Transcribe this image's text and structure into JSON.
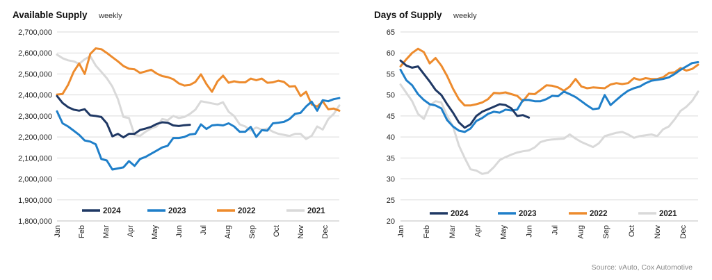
{
  "source": "Source: vAuto, Cox Automotive",
  "chart_data": [
    {
      "type": "line",
      "title": "Available Supply",
      "subtitle": "weekly",
      "xlabel": "",
      "ylabel": "",
      "ylim": [
        1800000,
        2700000
      ],
      "yticks": [
        1800000,
        1900000,
        2000000,
        2100000,
        2200000,
        2300000,
        2400000,
        2500000,
        2600000,
        2700000
      ],
      "ytick_labels": [
        "1,800,000",
        "1,900,000",
        "2,000,000",
        "2,100,000",
        "2,200,000",
        "2,300,000",
        "2,400,000",
        "2,500,000",
        "2,600,000",
        "2,700,000"
      ],
      "x_tick_labels": [
        "Jan",
        "Feb",
        "Mar",
        "Apr",
        "May",
        "Jun",
        "Jul",
        "Aug",
        "Sep",
        "Oct",
        "Nov",
        "Dec"
      ],
      "xlim": [
        1,
        52
      ],
      "grid": true,
      "legend": "bottom",
      "series": [
        {
          "name": "2024",
          "color": "#1f3864",
          "x": [
            1,
            2,
            3,
            4,
            5,
            6,
            7,
            8,
            9,
            10,
            11,
            12,
            13,
            14,
            15,
            16,
            17,
            18,
            19,
            20,
            21,
            22,
            23,
            24,
            25
          ],
          "values": [
            2395000,
            2362000,
            2342000,
            2330000,
            2325000,
            2332000,
            2303000,
            2300000,
            2295000,
            2265000,
            2203000,
            2215000,
            2198000,
            2215000,
            2215000,
            2233000,
            2240000,
            2248000,
            2262000,
            2270000,
            2268000,
            2255000,
            2252000,
            2256000,
            2258000
          ]
        },
        {
          "name": "2023",
          "color": "#1f7fc9",
          "x": [
            1,
            2,
            3,
            4,
            5,
            6,
            7,
            8,
            9,
            10,
            11,
            12,
            13,
            14,
            15,
            16,
            17,
            18,
            19,
            20,
            21,
            22,
            23,
            24,
            25,
            26,
            27,
            28,
            29,
            30,
            31,
            32,
            33,
            34,
            35,
            36,
            37,
            38,
            39,
            40,
            41,
            42,
            43,
            44,
            45,
            46,
            47,
            48,
            49,
            50,
            51,
            52
          ],
          "values": [
            2322000,
            2265000,
            2250000,
            2230000,
            2210000,
            2183000,
            2178000,
            2165000,
            2095000,
            2088000,
            2045000,
            2050000,
            2055000,
            2085000,
            2062000,
            2095000,
            2105000,
            2120000,
            2135000,
            2150000,
            2158000,
            2195000,
            2195000,
            2200000,
            2212000,
            2215000,
            2260000,
            2238000,
            2255000,
            2258000,
            2255000,
            2265000,
            2250000,
            2225000,
            2225000,
            2248000,
            2200000,
            2232000,
            2230000,
            2265000,
            2268000,
            2272000,
            2285000,
            2310000,
            2315000,
            2345000,
            2368000,
            2325000,
            2375000,
            2370000,
            2380000,
            2385000
          ]
        },
        {
          "name": "2022",
          "color": "#ed8b2d",
          "x": [
            1,
            2,
            3,
            4,
            5,
            6,
            7,
            8,
            9,
            10,
            11,
            12,
            13,
            14,
            15,
            16,
            17,
            18,
            19,
            20,
            21,
            22,
            23,
            24,
            25,
            26,
            27,
            28,
            29,
            30,
            31,
            32,
            33,
            34,
            35,
            36,
            37,
            38,
            39,
            40,
            41,
            42,
            43,
            44,
            45,
            46,
            47,
            48,
            49,
            50,
            51,
            52
          ],
          "values": [
            2402000,
            2405000,
            2448000,
            2510000,
            2550000,
            2500000,
            2595000,
            2622000,
            2618000,
            2600000,
            2580000,
            2560000,
            2538000,
            2525000,
            2522000,
            2505000,
            2512000,
            2520000,
            2502000,
            2490000,
            2485000,
            2475000,
            2455000,
            2445000,
            2448000,
            2462000,
            2498000,
            2452000,
            2415000,
            2465000,
            2492000,
            2458000,
            2465000,
            2460000,
            2460000,
            2478000,
            2470000,
            2478000,
            2458000,
            2460000,
            2468000,
            2462000,
            2440000,
            2442000,
            2395000,
            2415000,
            2355000,
            2345000,
            2370000,
            2332000,
            2335000,
            2325000
          ]
        },
        {
          "name": "2021",
          "color": "#d9d9d9",
          "x": [
            1,
            2,
            3,
            4,
            5,
            6,
            7,
            8,
            9,
            10,
            11,
            12,
            13,
            14,
            15,
            16,
            17,
            18,
            19,
            20,
            21,
            22,
            23,
            24,
            25,
            26,
            27,
            28,
            29,
            30,
            31,
            32,
            33,
            34,
            35,
            36,
            37,
            38,
            39,
            40,
            41,
            42,
            43,
            44,
            45,
            46,
            47,
            48,
            49,
            50,
            51,
            52
          ],
          "values": [
            2592000,
            2575000,
            2565000,
            2560000,
            2548000,
            2570000,
            2585000,
            2540000,
            2510000,
            2480000,
            2440000,
            2380000,
            2295000,
            2290000,
            2210000,
            2205000,
            2225000,
            2240000,
            2250000,
            2285000,
            2280000,
            2300000,
            2290000,
            2295000,
            2310000,
            2330000,
            2370000,
            2365000,
            2360000,
            2355000,
            2365000,
            2320000,
            2300000,
            2260000,
            2250000,
            2230000,
            2245000,
            2235000,
            2240000,
            2225000,
            2215000,
            2210000,
            2205000,
            2215000,
            2215000,
            2190000,
            2205000,
            2250000,
            2235000,
            2285000,
            2310000,
            2350000
          ]
        }
      ]
    },
    {
      "type": "line",
      "title": "Days of Supply",
      "subtitle": "weekly",
      "xlabel": "",
      "ylabel": "",
      "ylim": [
        20,
        65
      ],
      "yticks": [
        20,
        25,
        30,
        35,
        40,
        45,
        50,
        55,
        60,
        65
      ],
      "ytick_labels": [
        "20",
        "25",
        "30",
        "35",
        "40",
        "45",
        "50",
        "55",
        "60",
        "65"
      ],
      "x_tick_labels": [
        "Jan",
        "Feb",
        "Mar",
        "Apr",
        "May",
        "Jun",
        "Jul",
        "Aug",
        "Sep",
        "Oct",
        "Nov",
        "Dec"
      ],
      "xlim": [
        1,
        52
      ],
      "grid": true,
      "legend": "bottom",
      "series": [
        {
          "name": "2024",
          "color": "#1f3864",
          "x": [
            1,
            2,
            3,
            4,
            5,
            6,
            7,
            8,
            9,
            10,
            11,
            12,
            13,
            14,
            15,
            16,
            17,
            18,
            19,
            20,
            21,
            22,
            23,
            24,
            25
          ],
          "values": [
            58.2,
            57.0,
            56.5,
            56.8,
            55.0,
            53.2,
            51.2,
            50.0,
            47.8,
            45.8,
            43.5,
            42.2,
            43.0,
            45.0,
            46.0,
            46.6,
            47.2,
            47.8,
            47.6,
            46.8,
            45.0,
            45.2,
            44.6,
            null,
            null
          ]
        },
        {
          "name": "2023",
          "color": "#1f7fc9",
          "x": [
            1,
            2,
            3,
            4,
            5,
            6,
            7,
            8,
            9,
            10,
            11,
            12,
            13,
            14,
            15,
            16,
            17,
            18,
            19,
            20,
            21,
            22,
            23,
            24,
            25,
            26,
            27,
            28,
            29,
            30,
            31,
            32,
            33,
            34,
            35,
            36,
            37,
            38,
            39,
            40,
            41,
            42,
            43,
            44,
            45,
            46,
            47,
            48,
            49,
            50,
            51,
            52
          ],
          "values": [
            56.0,
            53.5,
            52.3,
            50.2,
            48.8,
            47.8,
            47.5,
            46.8,
            44.0,
            42.5,
            41.5,
            41.2,
            42.0,
            43.8,
            44.5,
            45.5,
            46.0,
            45.8,
            46.5,
            46.3,
            46.5,
            48.8,
            48.8,
            48.5,
            48.5,
            49.0,
            49.8,
            49.7,
            50.8,
            50.2,
            49.5,
            48.5,
            47.5,
            46.6,
            46.8,
            50.0,
            47.6,
            48.8,
            50.0,
            51.0,
            51.6,
            52.0,
            52.8,
            53.4,
            53.6,
            53.8,
            54.2,
            55.0,
            56.0,
            56.8,
            57.6,
            57.8
          ]
        },
        {
          "name": "2022",
          "color": "#ed8b2d",
          "x": [
            1,
            2,
            3,
            4,
            5,
            6,
            7,
            8,
            9,
            10,
            11,
            12,
            13,
            14,
            15,
            16,
            17,
            18,
            19,
            20,
            21,
            22,
            23,
            24,
            25,
            26,
            27,
            28,
            29,
            30,
            31,
            32,
            33,
            34,
            35,
            36,
            37,
            38,
            39,
            40,
            41,
            42,
            43,
            44,
            45,
            46,
            47,
            48,
            49,
            50,
            51,
            52
          ],
          "values": [
            56.8,
            58.5,
            60.0,
            61.0,
            60.2,
            57.5,
            58.8,
            57.0,
            54.5,
            51.5,
            49.0,
            47.5,
            47.5,
            47.8,
            48.2,
            49.0,
            50.5,
            50.4,
            50.6,
            50.2,
            49.8,
            48.5,
            50.3,
            50.2,
            51.2,
            52.3,
            52.2,
            51.8,
            51.0,
            52.0,
            53.8,
            52.0,
            51.6,
            51.8,
            51.7,
            51.6,
            52.5,
            52.8,
            52.6,
            52.8,
            54.0,
            53.6,
            54.0,
            53.8,
            53.8,
            54.2,
            55.2,
            55.4,
            56.4,
            55.8,
            56.2,
            57.2
          ]
        },
        {
          "name": "2021",
          "color": "#d9d9d9",
          "x": [
            1,
            2,
            3,
            4,
            5,
            6,
            7,
            8,
            9,
            10,
            11,
            12,
            13,
            14,
            15,
            16,
            17,
            18,
            19,
            20,
            21,
            22,
            23,
            24,
            25,
            26,
            27,
            28,
            29,
            30,
            31,
            32,
            33,
            34,
            35,
            36,
            37,
            38,
            39,
            40,
            41,
            42,
            43,
            44,
            45,
            46,
            47,
            48,
            49,
            50,
            51,
            52
          ],
          "values": [
            52.5,
            50.5,
            48.5,
            45.5,
            44.3,
            47.5,
            48.5,
            48.2,
            45.0,
            42.5,
            38.0,
            35.0,
            32.3,
            32.0,
            31.2,
            31.5,
            32.8,
            34.5,
            35.2,
            35.8,
            36.3,
            36.6,
            36.8,
            37.5,
            38.8,
            39.2,
            39.4,
            39.5,
            39.6,
            40.6,
            39.6,
            38.8,
            38.2,
            37.6,
            38.5,
            40.2,
            40.6,
            41.0,
            41.2,
            40.6,
            39.8,
            40.2,
            40.4,
            40.6,
            40.2,
            41.8,
            42.5,
            44.2,
            46.2,
            47.2,
            48.6,
            50.8
          ]
        }
      ]
    }
  ]
}
